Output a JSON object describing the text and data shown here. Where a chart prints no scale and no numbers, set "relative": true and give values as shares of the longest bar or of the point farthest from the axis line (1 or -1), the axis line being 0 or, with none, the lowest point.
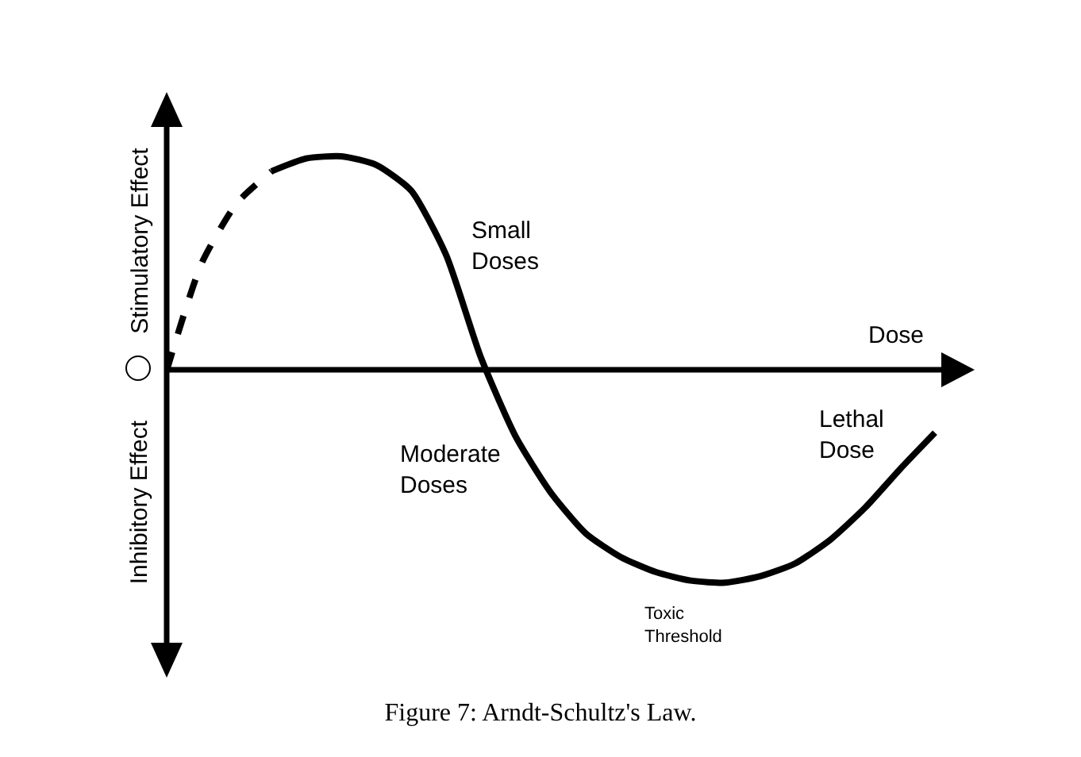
{
  "chart_data": {
    "type": "line",
    "title": "Figure 7: Arndt-Schultz's Law.",
    "xlabel": "Dose",
    "annotations": [
      "Stimulatory Effect",
      "Inhibitory Effect",
      "Small Doses",
      "Moderate Doses",
      "Toxic Threshold",
      "Lethal Dose"
    ],
    "relative": true,
    "marker": "none",
    "categories": [
      null,
      null,
      null,
      null,
      null,
      null,
      null,
      null,
      null,
      null,
      null,
      null,
      null,
      null,
      null,
      null,
      null,
      null,
      null,
      null,
      null,
      null,
      null
    ],
    "series": [
      {
        "color": "#000000",
        "line_style": "dashed",
        "values": [
          0,
          0.5,
          0.78,
          0.93,
          null,
          null,
          null,
          null,
          null,
          null,
          null,
          null,
          null,
          null,
          null,
          null,
          null,
          null,
          null,
          null,
          null,
          null,
          null
        ]
      },
      {
        "color": "#000000",
        "line_style": "solid",
        "values": [
          null,
          null,
          null,
          0.93,
          0.99,
          1,
          0.96,
          0.84,
          0.54,
          0.06,
          -0.31,
          -0.57,
          -0.76,
          -0.87,
          -0.94,
          -0.98,
          -0.99,
          -0.96,
          -0.9,
          -0.79,
          -0.64,
          -0.46,
          -0.29
        ]
      }
    ]
  }
}
